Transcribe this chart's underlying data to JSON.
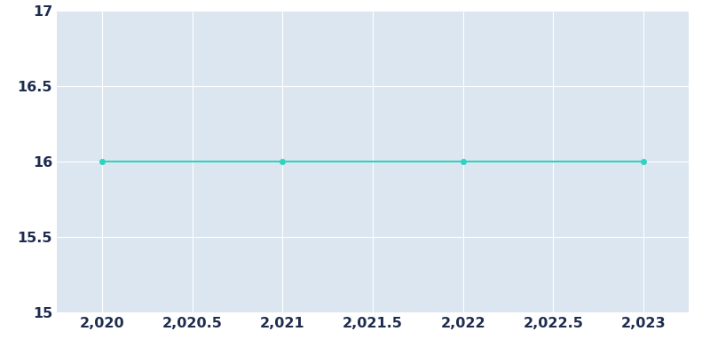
{
  "x_values": [
    2020,
    2021,
    2022,
    2023
  ],
  "y_values": [
    16,
    16,
    16,
    16
  ],
  "xlim": [
    2019.75,
    2023.25
  ],
  "ylim": [
    15,
    17
  ],
  "yticks": [
    15,
    15.5,
    16,
    16.5,
    17
  ],
  "xticks": [
    2020,
    2020.5,
    2021,
    2021.5,
    2022,
    2022.5,
    2023
  ],
  "line_color": "#2dd4bf",
  "marker": "o",
  "marker_size": 4,
  "line_width": 1.5,
  "axes_bg_color": "#dce6f1",
  "fig_bg_color": "#ffffff",
  "grid_color": "#ffffff",
  "tick_color": "#1e2d4f",
  "tick_fontsize": 11.5,
  "spine_visible": false
}
